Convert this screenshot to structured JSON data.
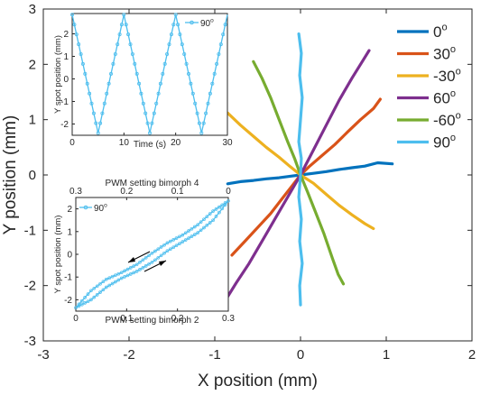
{
  "chart_data": [
    {
      "type": "line",
      "title": "",
      "xlabel": "X position (mm)",
      "ylabel": "Y position (mm)",
      "xlim": [
        -3,
        2
      ],
      "ylim": [
        -3,
        3
      ],
      "xticks": [
        "-3",
        "-2",
        "-1",
        "0",
        "1",
        "2"
      ],
      "yticks": [
        "-3",
        "-2",
        "-1",
        "0",
        "1",
        "2",
        "3"
      ],
      "grid": false,
      "legend_position": "right",
      "series": [
        {
          "name": "0",
          "unit": "o",
          "color": "#0072BD",
          "points": [
            [
              -0.85,
              -0.16
            ],
            [
              -0.7,
              -0.12
            ],
            [
              -0.55,
              -0.1
            ],
            [
              -0.4,
              -0.07
            ],
            [
              -0.25,
              -0.05
            ],
            [
              -0.1,
              -0.02
            ],
            [
              0,
              0
            ],
            [
              0.15,
              0.03
            ],
            [
              0.3,
              0.06
            ],
            [
              0.45,
              0.1
            ],
            [
              0.6,
              0.13
            ],
            [
              0.75,
              0.16
            ],
            [
              0.9,
              0.22
            ],
            [
              1.07,
              0.2
            ]
          ]
        },
        {
          "name": "30",
          "unit": "o",
          "color": "#D95319",
          "points": [
            [
              -0.8,
              -1.45
            ],
            [
              -0.65,
              -1.2
            ],
            [
              -0.5,
              -0.95
            ],
            [
              -0.35,
              -0.7
            ],
            [
              -0.2,
              -0.4
            ],
            [
              -0.1,
              -0.2
            ],
            [
              0,
              0
            ],
            [
              0.1,
              0.15
            ],
            [
              0.25,
              0.35
            ],
            [
              0.4,
              0.55
            ],
            [
              0.55,
              0.78
            ],
            [
              0.7,
              1.0
            ],
            [
              0.85,
              1.2
            ],
            [
              0.93,
              1.37
            ]
          ]
        },
        {
          "name": "-30",
          "unit": "o",
          "color": "#EDB120",
          "points": [
            [
              -0.85,
              1.12
            ],
            [
              -0.7,
              0.9
            ],
            [
              -0.55,
              0.7
            ],
            [
              -0.4,
              0.5
            ],
            [
              -0.25,
              0.32
            ],
            [
              -0.12,
              0.15
            ],
            [
              0,
              0
            ],
            [
              0.15,
              -0.15
            ],
            [
              0.3,
              -0.35
            ],
            [
              0.45,
              -0.55
            ],
            [
              0.6,
              -0.72
            ],
            [
              0.75,
              -0.88
            ],
            [
              0.85,
              -0.97
            ]
          ]
        },
        {
          "name": "60",
          "unit": "o",
          "color": "#7E2F8E",
          "points": [
            [
              -0.85,
              -2.2
            ],
            [
              -0.75,
              -1.95
            ],
            [
              -0.6,
              -1.6
            ],
            [
              -0.45,
              -1.2
            ],
            [
              -0.3,
              -0.8
            ],
            [
              -0.15,
              -0.4
            ],
            [
              0,
              0
            ],
            [
              0.15,
              0.45
            ],
            [
              0.3,
              0.9
            ],
            [
              0.45,
              1.35
            ],
            [
              0.6,
              1.75
            ],
            [
              0.72,
              2.05
            ],
            [
              0.8,
              2.25
            ]
          ]
        },
        {
          "name": "-60",
          "unit": "o",
          "color": "#77AC30",
          "points": [
            [
              -0.55,
              2.05
            ],
            [
              -0.45,
              1.75
            ],
            [
              -0.35,
              1.4
            ],
            [
              -0.25,
              1.0
            ],
            [
              -0.15,
              0.6
            ],
            [
              -0.07,
              0.3
            ],
            [
              0,
              0
            ],
            [
              0.08,
              -0.3
            ],
            [
              0.17,
              -0.65
            ],
            [
              0.27,
              -1.05
            ],
            [
              0.37,
              -1.5
            ],
            [
              0.44,
              -1.8
            ],
            [
              0.5,
              -1.97
            ]
          ]
        },
        {
          "name": "90",
          "unit": "o",
          "color": "#4DBEEE",
          "points": [
            [
              -0.02,
              2.55
            ],
            [
              0.01,
              2.2
            ],
            [
              -0.01,
              1.8
            ],
            [
              0.02,
              1.4
            ],
            [
              0,
              1.0
            ],
            [
              -0.02,
              0.6
            ],
            [
              0.01,
              0.3
            ],
            [
              0,
              0
            ],
            [
              -0.02,
              -0.4
            ],
            [
              0.01,
              -0.8
            ],
            [
              -0.01,
              -1.2
            ],
            [
              0.02,
              -1.6
            ],
            [
              -0.01,
              -2.0
            ],
            [
              0,
              -2.35
            ]
          ]
        }
      ]
    },
    {
      "type": "line",
      "title": "",
      "xlabel": "Time (s)",
      "ylabel": "Y spot position (mm)",
      "xlim": [
        0,
        30
      ],
      "ylim": [
        -2.5,
        2.9
      ],
      "xticks": [
        "0",
        "10",
        "20",
        "30"
      ],
      "yticks": [
        "-2",
        "-1",
        "0",
        "1",
        "2"
      ],
      "legend": "90",
      "legend_unit": "o",
      "color": "#4DBEEE",
      "series": [
        {
          "name": "90",
          "points": [
            [
              0,
              2.85
            ],
            [
              5,
              -2.4
            ],
            [
              10,
              2.85
            ],
            [
              15,
              -2.4
            ],
            [
              20,
              2.85
            ],
            [
              25,
              -2.4
            ],
            [
              30,
              2.85
            ]
          ]
        }
      ]
    },
    {
      "type": "line",
      "title": "",
      "xlabel": "PWM setting bimorph 2",
      "x2label": "PWM setting bimorph 4",
      "ylabel": "Y spot position (mm)",
      "xlim": [
        0,
        0.3
      ],
      "x2lim": [
        0.3,
        0
      ],
      "ylim": [
        -2.5,
        2.5
      ],
      "xticks": [
        "0",
        "0.1",
        "0.2",
        "0.3"
      ],
      "x2ticks": [
        "0.3",
        "0.2",
        "0.1",
        "0"
      ],
      "yticks": [
        "-2",
        "-1",
        "0",
        "1",
        "2"
      ],
      "legend": "90",
      "legend_unit": "o",
      "color": "#4DBEEE",
      "series": [
        {
          "name": "forward",
          "points": [
            [
              0,
              -2.35
            ],
            [
              0.03,
              -2.0
            ],
            [
              0.06,
              -1.45
            ],
            [
              0.09,
              -1.05
            ],
            [
              0.12,
              -0.75
            ],
            [
              0.15,
              -0.35
            ],
            [
              0.18,
              0.15
            ],
            [
              0.21,
              0.55
            ],
            [
              0.24,
              0.95
            ],
            [
              0.27,
              1.5
            ],
            [
              0.3,
              2.35
            ]
          ]
        },
        {
          "name": "backward",
          "points": [
            [
              0.3,
              2.35
            ],
            [
              0.27,
              1.9
            ],
            [
              0.24,
              1.3
            ],
            [
              0.21,
              0.85
            ],
            [
              0.18,
              0.5
            ],
            [
              0.15,
              0.05
            ],
            [
              0.12,
              -0.45
            ],
            [
              0.09,
              -0.8
            ],
            [
              0.06,
              -1.1
            ],
            [
              0.03,
              -1.6
            ],
            [
              0,
              -2.35
            ]
          ]
        }
      ]
    }
  ]
}
